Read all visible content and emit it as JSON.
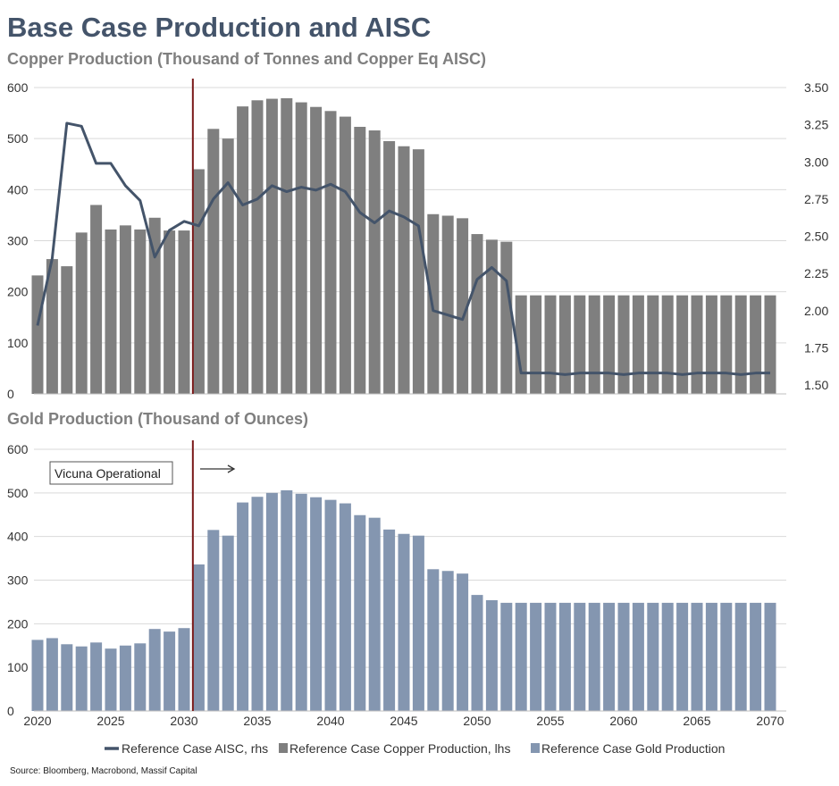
{
  "title": "Base Case Production and AISC",
  "source": "Source: Bloomberg, Macrobond, Massif Capital",
  "colors": {
    "copper": "#7f7f7f",
    "gold": "#8496b0",
    "aisc": "#44546a",
    "marker": "#7b1a1a",
    "title": "#44546a",
    "subtitle": "#7f7f7f"
  },
  "chart_data": [
    {
      "type": "bar",
      "title": "Copper Production (Thousand of Tonnes and Copper Eq AISC)",
      "x": [
        2020,
        2021,
        2022,
        2023,
        2024,
        2025,
        2026,
        2027,
        2028,
        2029,
        2030,
        2031,
        2032,
        2033,
        2034,
        2035,
        2036,
        2037,
        2038,
        2039,
        2040,
        2041,
        2042,
        2043,
        2044,
        2045,
        2046,
        2047,
        2048,
        2049,
        2050,
        2051,
        2052,
        2053,
        2054,
        2055,
        2056,
        2057,
        2058,
        2059,
        2060,
        2061,
        2062,
        2063,
        2064,
        2065,
        2066,
        2067,
        2068,
        2069,
        2070
      ],
      "series": [
        {
          "name": "Reference Case Copper Production, lhs",
          "type": "bar",
          "axis": "left",
          "values": [
            232,
            264,
            250,
            316,
            370,
            322,
            330,
            322,
            345,
            320,
            320,
            440,
            519,
            500,
            563,
            575,
            578,
            579,
            571,
            562,
            554,
            543,
            523,
            516,
            495,
            485,
            479,
            352,
            349,
            344,
            313,
            302,
            298,
            193,
            193,
            193,
            193,
            193,
            193,
            193,
            193,
            193,
            193,
            193,
            193,
            193,
            193,
            193,
            193,
            193,
            193
          ]
        },
        {
          "name": "Reference Case AISC, rhs",
          "type": "line",
          "axis": "right",
          "values": [
            1.9,
            2.35,
            3.26,
            3.24,
            2.99,
            2.99,
            2.84,
            2.74,
            2.36,
            2.54,
            2.6,
            2.57,
            2.75,
            2.86,
            2.71,
            2.75,
            2.84,
            2.8,
            2.83,
            2.81,
            2.85,
            2.8,
            2.66,
            2.59,
            2.67,
            2.63,
            2.57,
            2.0,
            1.97,
            1.94,
            2.21,
            2.29,
            2.2,
            1.58,
            1.58,
            1.58,
            1.57,
            1.58,
            1.58,
            1.58,
            1.57,
            1.58,
            1.58,
            1.58,
            1.57,
            1.58,
            1.58,
            1.58,
            1.57,
            1.58,
            1.58
          ]
        }
      ],
      "ylim": [
        0,
        600
      ],
      "yticks": [
        "0",
        "100",
        "200",
        "300",
        "400",
        "500",
        "600"
      ],
      "y2lim": [
        1.5,
        3.5
      ],
      "y2ticks": [
        "1.50",
        "1.75",
        "2.00",
        "2.25",
        "2.50",
        "2.75",
        "3.00",
        "3.25",
        "3.50"
      ],
      "marker_year": 2030.6
    },
    {
      "type": "bar",
      "title": "Gold Production (Thousand of Ounces)",
      "series": [
        {
          "name": "Reference Case Gold Production",
          "type": "bar",
          "values": [
            163,
            167,
            153,
            148,
            157,
            143,
            150,
            155,
            188,
            182,
            190,
            336,
            415,
            402,
            478,
            491,
            500,
            506,
            498,
            490,
            484,
            476,
            449,
            443,
            416,
            406,
            402,
            325,
            321,
            315,
            266,
            254,
            248,
            248,
            248,
            248,
            248,
            248,
            248,
            248,
            248,
            248,
            248,
            248,
            248,
            248,
            248,
            248,
            248,
            248,
            248
          ]
        }
      ],
      "ylim": [
        0,
        600
      ],
      "yticks": [
        "0",
        "100",
        "200",
        "300",
        "400",
        "500",
        "600"
      ],
      "xticks": [
        "2020",
        "2025",
        "2030",
        "2035",
        "2040",
        "2045",
        "2050",
        "2055",
        "2060",
        "2065",
        "2070"
      ],
      "annotation": "Vicuna Operational",
      "marker_year": 2030.6
    }
  ],
  "legend": [
    "Reference Case AISC, rhs",
    "Reference Case Copper Production, lhs",
    "Reference Case Gold Production"
  ]
}
